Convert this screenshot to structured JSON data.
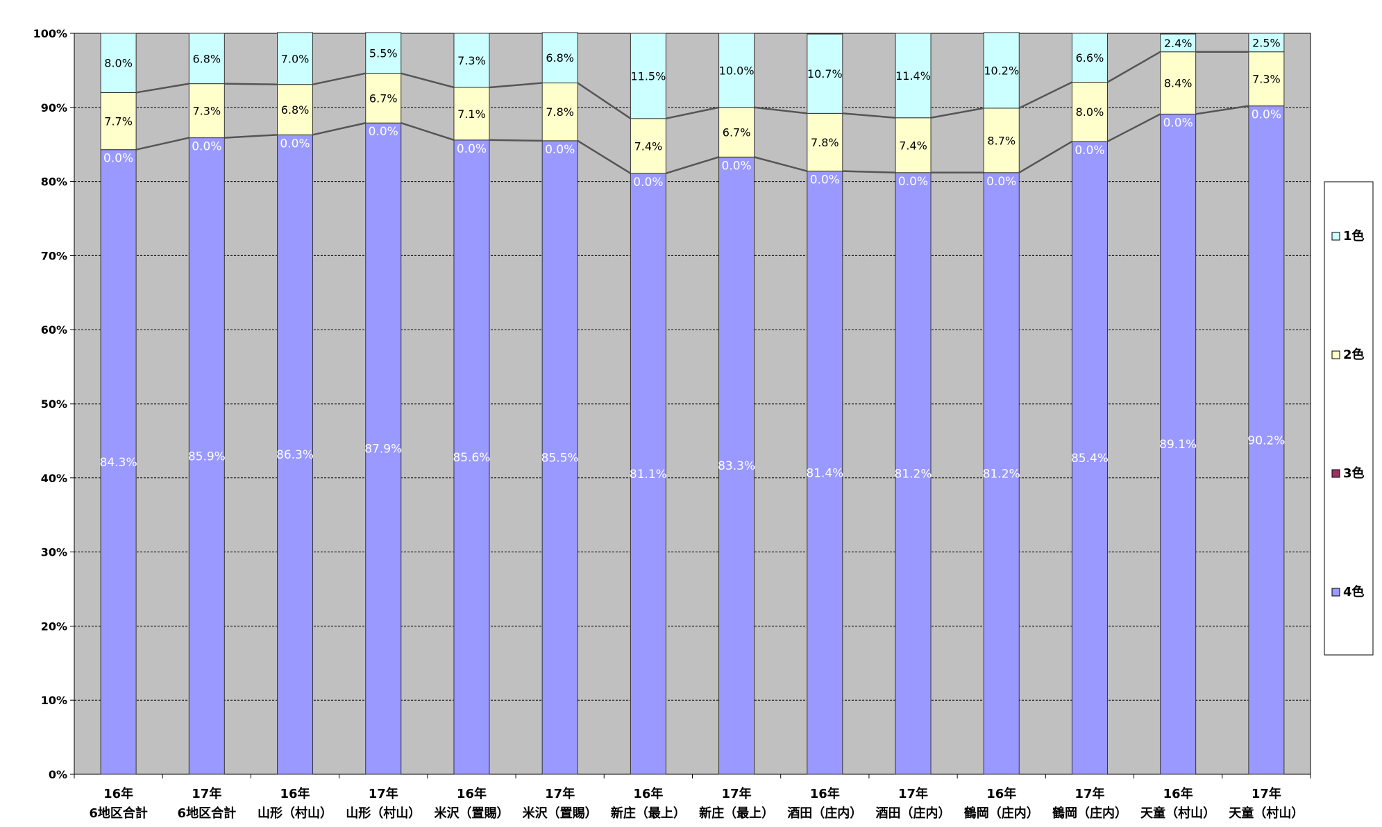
{
  "chart_data": {
    "type": "bar",
    "stacked": true,
    "percent_axis": true,
    "title": "",
    "categories": [
      [
        "16年",
        "6地区合計"
      ],
      [
        "17年",
        "6地区合計"
      ],
      [
        "16年",
        "山形（村山）"
      ],
      [
        "17年",
        "山形（村山）"
      ],
      [
        "16年",
        "米沢（置賜）"
      ],
      [
        "17年",
        "米沢（置賜）"
      ],
      [
        "16年",
        "新庄（最上）"
      ],
      [
        "17年",
        "新庄（最上）"
      ],
      [
        "16年",
        "酒田（庄内）"
      ],
      [
        "17年",
        "酒田（庄内）"
      ],
      [
        "16年",
        "鶴岡（庄内）"
      ],
      [
        "17年",
        "鶴岡（庄内）"
      ],
      [
        "16年",
        "天童（村山）"
      ],
      [
        "17年",
        "天童（村山）"
      ]
    ],
    "series": [
      {
        "name": "4色",
        "color": "#9999ff",
        "labels": [
          "84.3%",
          "85.9%",
          "86.3%",
          "87.9%",
          "85.6%",
          "85.5%",
          "81.1%",
          "83.3%",
          "81.4%",
          "81.2%",
          "81.2%",
          "85.4%",
          "89.1%",
          "90.2%"
        ],
        "values": [
          84.3,
          85.9,
          86.3,
          87.9,
          85.6,
          85.5,
          81.1,
          83.3,
          81.4,
          81.2,
          81.2,
          85.4,
          89.1,
          90.2
        ]
      },
      {
        "name": "3色",
        "color": "#993366",
        "labels": [
          "0.0%",
          "0.0%",
          "0.0%",
          "0.0%",
          "0.0%",
          "0.0%",
          "0.0%",
          "0.0%",
          "0.0%",
          "0.0%",
          "0.0%",
          "0.0%",
          "0.0%",
          "0.0%"
        ],
        "values": [
          0,
          0,
          0,
          0,
          0,
          0,
          0,
          0,
          0,
          0,
          0,
          0,
          0,
          0
        ]
      },
      {
        "name": "2色",
        "color": "#ffffcc",
        "labels": [
          "7.7%",
          "7.3%",
          "6.8%",
          "6.7%",
          "7.1%",
          "7.8%",
          "7.4%",
          "6.7%",
          "7.8%",
          "7.4%",
          "8.7%",
          "8.0%",
          "8.4%",
          "7.3%"
        ],
        "values": [
          7.7,
          7.3,
          6.8,
          6.7,
          7.1,
          7.8,
          7.4,
          6.7,
          7.8,
          7.4,
          8.7,
          8.0,
          8.4,
          7.3
        ]
      },
      {
        "name": "1色",
        "color": "#ccffff",
        "labels": [
          "8.0%",
          "6.8%",
          "7.0%",
          "5.5%",
          "7.3%",
          "6.8%",
          "11.5%",
          "10.0%",
          "10.7%",
          "11.4%",
          "10.2%",
          "6.6%",
          "2.4%",
          "2.5%"
        ],
        "values": [
          8.0,
          6.8,
          7.0,
          5.5,
          7.3,
          6.8,
          11.5,
          10.0,
          10.7,
          11.4,
          10.2,
          6.6,
          2.4,
          2.5
        ]
      }
    ],
    "yticks": [
      "0%",
      "10%",
      "20%",
      "30%",
      "40%",
      "50%",
      "60%",
      "70%",
      "80%",
      "90%",
      "100%"
    ],
    "ylim": [
      0,
      100
    ],
    "grid": true,
    "legend": {
      "placement": "right",
      "order": [
        "1色",
        "2色",
        "3色",
        "4色"
      ]
    },
    "plot_background": "#c0c0c0"
  }
}
